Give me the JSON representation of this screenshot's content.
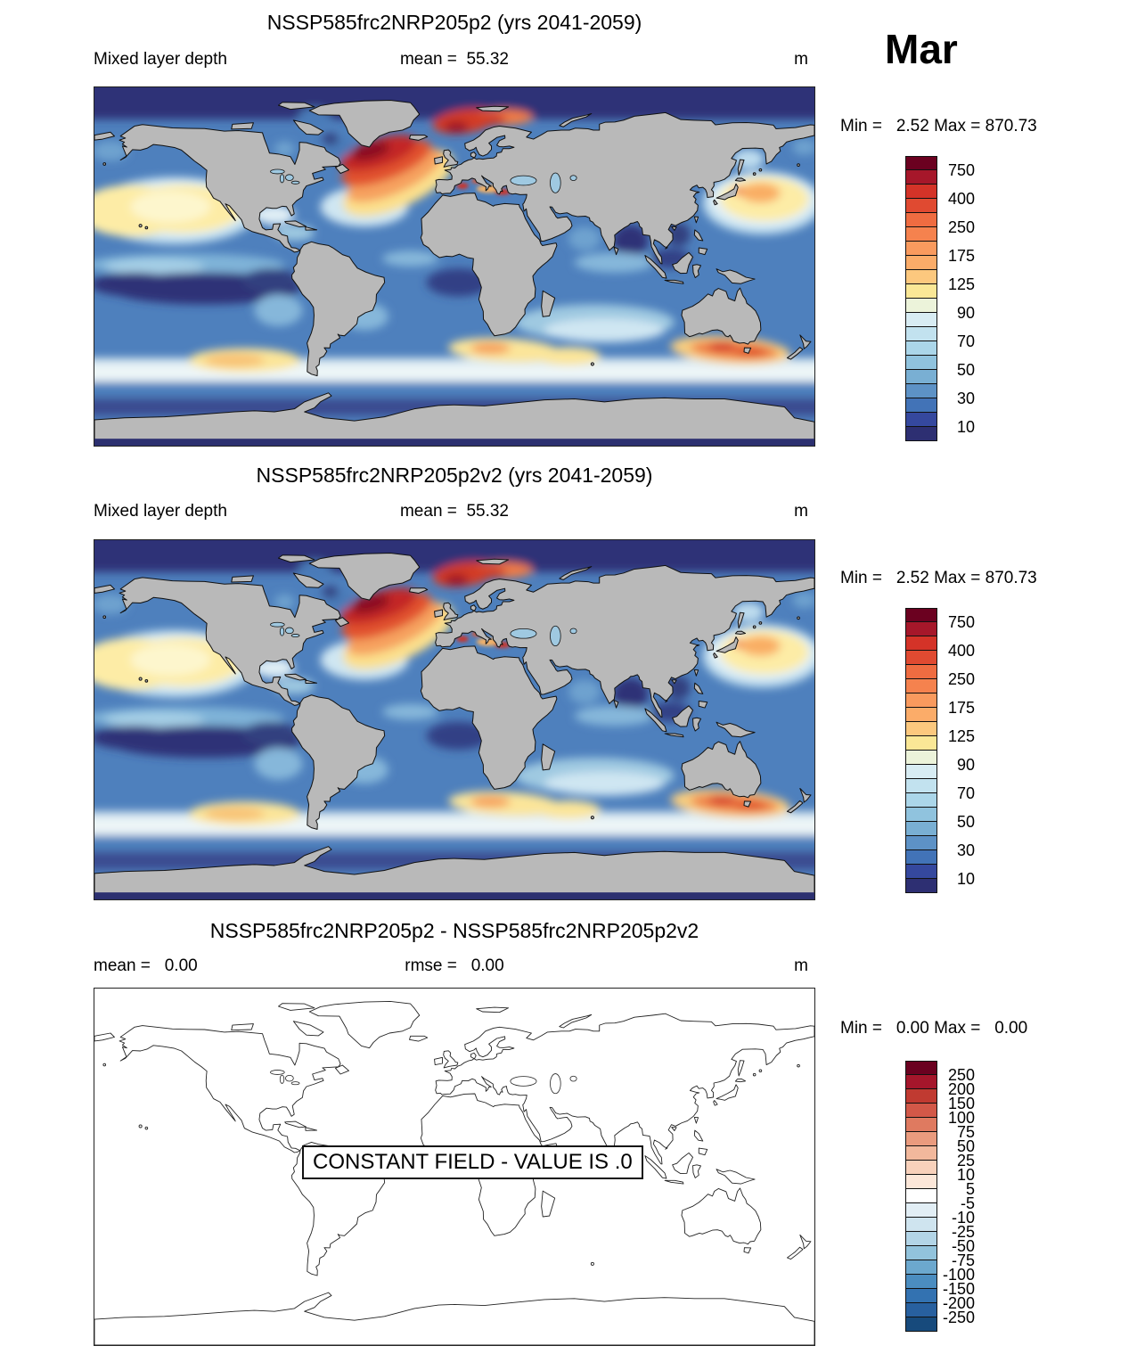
{
  "month_label": "Mar",
  "unit": "m",
  "panels": [
    {
      "title": "NSSP585frc2NRP205p2 (yrs 2041-2059)",
      "left_label": "Mixed layer depth",
      "center_label": "mean =  55.32",
      "unit": "m",
      "minmax": "Min =   2.52 Max = 870.73"
    },
    {
      "title": "NSSP585frc2NRP205p2v2 (yrs 2041-2059)",
      "left_label": "Mixed layer depth",
      "center_label": "mean =  55.32",
      "unit": "m",
      "minmax": "Min =   2.52 Max = 870.73"
    },
    {
      "title": "NSSP585frc2NRP205p2 - NSSP585frc2NRP205p2v2",
      "left_label": "mean =   0.00",
      "center_label": "rmse =   0.00",
      "unit": "m",
      "minmax": "Min =   0.00 Max =   0.00",
      "overlay_text": "CONSTANT FIELD - VALUE IS .0"
    }
  ],
  "colorbars": {
    "mld": {
      "colors": [
        "#6b0120",
        "#a6172a",
        "#d43328",
        "#e04a31",
        "#ef6c41",
        "#f5824e",
        "#f99a5e",
        "#fbac69",
        "#fcc87e",
        "#fae796",
        "#ecf3da",
        "#d8ecf3",
        "#c2e2ef",
        "#abd6e9",
        "#90c3de",
        "#79afd3",
        "#5d92c6",
        "#4273b7",
        "#35489e",
        "#2d2f72"
      ],
      "labels": [
        "750",
        "400",
        "250",
        "175",
        "125",
        "90",
        "70",
        "50",
        "30",
        "10"
      ],
      "label_step": 2
    },
    "diff": {
      "colors": [
        "#6b0120",
        "#a5162b",
        "#c03a31",
        "#d25848",
        "#df7a60",
        "#ea9b7e",
        "#f2b89c",
        "#f8d1bb",
        "#fce7d9",
        "#ffffff",
        "#e2eef5",
        "#cfe4ef",
        "#b3d5e7",
        "#92c3dc",
        "#6ca8ce",
        "#4b8dc0",
        "#3372b1",
        "#28609f",
        "#174a7c"
      ],
      "labels": [
        "250",
        "200",
        "150",
        "100",
        "75",
        "50",
        "25",
        "10",
        "5",
        "-5",
        "-10",
        "-25",
        "-50",
        "-75",
        "-100",
        "-150",
        "-200",
        "-250"
      ],
      "label_step": 1
    }
  },
  "chart_data": {
    "type": "heatmap",
    "title": "Mixed layer depth comparison, March",
    "month": "Mar",
    "variable": "Mixed layer depth",
    "unit": "m",
    "projection": "equirectangular world map, lon -180..180, lat -90..90",
    "panels": [
      {
        "name": "NSSP585frc2NRP205p2 (yrs 2041-2059)",
        "mean": 55.32,
        "min": 2.52,
        "max": 870.73,
        "contour_levels": [
          10,
          20,
          30,
          40,
          50,
          60,
          70,
          80,
          90,
          100,
          125,
          150,
          175,
          200,
          250,
          300,
          400,
          500,
          750
        ],
        "labeled_levels": [
          750,
          400,
          250,
          175,
          125,
          90,
          70,
          50,
          30,
          10
        ],
        "features": "Deep MLD (red, >400 m) in North Atlantic subpolar gyre and Nordic Seas; 100-200 m (yellow) in subtropical North Pacific and Southern Ocean 40-55S storm track; shallow (<30 m, navy) in Arctic, tropical South Pacific, Bay of Bengal and Antarctic coastal zone"
      },
      {
        "name": "NSSP585frc2NRP205p2v2 (yrs 2041-2059)",
        "mean": 55.32,
        "min": 2.52,
        "max": 870.73,
        "contour_levels": [
          10,
          20,
          30,
          40,
          50,
          60,
          70,
          80,
          90,
          100,
          125,
          150,
          175,
          200,
          250,
          300,
          400,
          500,
          750
        ],
        "labeled_levels": [
          750,
          400,
          250,
          175,
          125,
          90,
          70,
          50,
          30,
          10
        ],
        "features": "Identical field to panel 1"
      },
      {
        "name": "NSSP585frc2NRP205p2 - NSSP585frc2NRP205p2v2",
        "mean": 0.0,
        "rmse": 0.0,
        "min": 0.0,
        "max": 0.0,
        "contour_levels": [
          -250,
          -200,
          -150,
          -100,
          -75,
          -50,
          -25,
          -10,
          -5,
          5,
          10,
          25,
          50,
          75,
          100,
          150,
          200,
          250
        ],
        "note": "CONSTANT FIELD - VALUE IS .0"
      }
    ]
  }
}
